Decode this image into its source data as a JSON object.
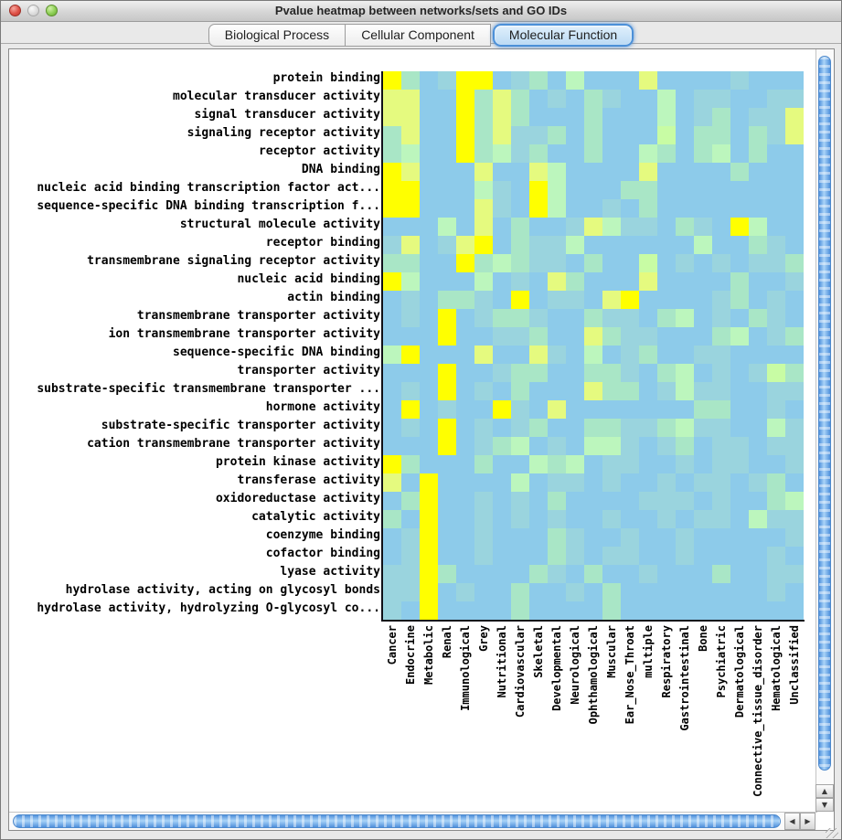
{
  "window": {
    "title": "Pvalue heatmap between networks/sets and GO IDs"
  },
  "tabs": [
    {
      "label": "Biological Process",
      "selected": false
    },
    {
      "label": "Cellular Component",
      "selected": false
    },
    {
      "label": "Molecular Function",
      "selected": true
    }
  ],
  "scrollbars": {
    "up_glyph": "▲",
    "down_glyph": "▼",
    "left_glyph": "◀",
    "right_glyph": "▶"
  },
  "heatmap": {
    "row_labels": [
      "protein binding",
      "molecular transducer activity",
      "signal transducer activity",
      "signaling receptor activity",
      "receptor activity",
      "DNA binding",
      "nucleic acid binding transcription factor act...",
      "sequence-specific DNA binding transcription f...",
      "structural molecule activity",
      "receptor binding",
      "transmembrane signaling receptor activity",
      "nucleic acid binding",
      "actin binding",
      "transmembrane transporter activity",
      "ion transmembrane transporter activity",
      "sequence-specific DNA binding",
      "transporter activity",
      "substrate-specific transmembrane transporter ...",
      "hormone activity",
      "substrate-specific transporter activity",
      "cation transmembrane transporter activity",
      "protein kinase activity",
      "transferase activity",
      "oxidoreductase activity",
      "catalytic activity",
      "coenzyme binding",
      "cofactor binding",
      "lyase activity",
      "hydrolase activity, acting on glycosyl bonds",
      "hydrolase activity, hydrolyzing O-glycosyl co..."
    ],
    "col_labels": [
      "Cancer",
      "Endocrine",
      "Metabolic",
      "Renal",
      "Immunological",
      "Grey",
      "Nutritional",
      "Cardiovascular",
      "Skeletal",
      "Developmental",
      "Neurological",
      "Ophthamological",
      "Muscular",
      "Ear_Nose_Throat",
      "multiple",
      "Respiratory",
      "Gastrointestinal",
      "Bone",
      "Psychiatric",
      "Dermatological",
      "Connective_tissue_disorder",
      "Hematological",
      "Unclassified"
    ],
    "palette": {
      "B": "#8DCBEA",
      "C": "#9AD4DE",
      "A": "#A9E6C6",
      "G": "#BCF6BD",
      "H": "#C8FCA4",
      "L": "#E5FA7F",
      "Y": "#FFFF00"
    },
    "cells": [
      "YABCYYBCABGBBBLBBBBCBBB",
      "LLBBYALABCBACBBGBCCBBCC",
      "LLBBYALABBBABBBGBCABCCL",
      "ALBBYALCCABABBBHBAABACL",
      "AGBBYAGCABBABBGABAGBABB",
      "YLBBBLBBLGBBBBLBBBBABBB",
      "YYBBBGCBYGBBBAABBBBBBBB",
      "YYBBBLCBYGBBCBABBBBBBBB",
      "BBBGBLBABBCLGCCBACBYGBB",
      "CLBCLYBACCGBBBBBBGBBACB",
      "AABBYAGACCBABBHBCBCBCCA",
      "YGBBBGBCBLABBBLBBBBABBC",
      "BCBAACBYBCCBLYBBBBCABCB",
      "BCBYBCAACBBACCBAGBCBACB",
      "BBBYBBCCABBLACCBBBAGBCA",
      "GYBBBLBBLCBGBCABBCCBBBB",
      "BBBYBBCAABBAACBAGBCBCHA",
      "BCBYBCBABBBLAABCGCCBBCC",
      "BYBCBBYCBLBBBBBBBAABBCB",
      "BCBYBCBCABBAACCAGCCBBGC",
      "BBBYBCAGBCBGGCBCABCCBCC",
      "YABBBABBGAGBCCBBCBCCBBC",
      "LBYBBBBGBCCBCBBCBCCBCAB",
      "BAYBBCBCBABBBBCCCBCBBAG",
      "ABYBBCBCBCBBCBBCBCCBGCC",
      "BCYBBCBBBACBBCBBCBBBBBC",
      "BCYBBCBBBACBCCBBCBBBBCB",
      "CCYABBBBACBABBCBBBABBCC",
      "CCYBCBBABBCBABBBBBBBBCB",
      "CBYBBBBABBBBABBBBBBBBBB"
    ]
  },
  "chart_data": {
    "type": "heatmap",
    "title": "Pvalue heatmap between networks/sets and GO IDs",
    "tab_shown": "Molecular Function",
    "rows": [
      "protein binding",
      "molecular transducer activity",
      "signal transducer activity",
      "signaling receptor activity",
      "receptor activity",
      "DNA binding",
      "nucleic acid binding transcription factor act...",
      "sequence-specific DNA binding transcription f...",
      "structural molecule activity",
      "receptor binding",
      "transmembrane signaling receptor activity",
      "nucleic acid binding",
      "actin binding",
      "transmembrane transporter activity",
      "ion transmembrane transporter activity",
      "sequence-specific DNA binding",
      "transporter activity",
      "substrate-specific transmembrane transporter ...",
      "hormone activity",
      "substrate-specific transporter activity",
      "cation transmembrane transporter activity",
      "protein kinase activity",
      "transferase activity",
      "oxidoreductase activity",
      "catalytic activity",
      "coenzyme binding",
      "cofactor binding",
      "lyase activity",
      "hydrolase activity, acting on glycosyl bonds",
      "hydrolase activity, hydrolyzing O-glycosyl co..."
    ],
    "columns": [
      "Cancer",
      "Endocrine",
      "Metabolic",
      "Renal",
      "Immunological",
      "Grey",
      "Nutritional",
      "Cardiovascular",
      "Skeletal",
      "Developmental",
      "Neurological",
      "Ophthamological",
      "Muscular",
      "Ear_Nose_Throat",
      "multiple",
      "Respiratory",
      "Gastrointestinal",
      "Bone",
      "Psychiatric",
      "Dermatological",
      "Connective_tissue_disorder",
      "Hematological",
      "Unclassified"
    ],
    "value_encoding": "categorical color code per cell; Y=strongest (yellow, lowest p-value), L, H, G, A, C decreasing significance, B=background (light blue, not significant)",
    "values": [
      "YABCYYBCABGBBBLBBBBCBBB",
      "LLBBYALABCBACBBGBCCBBCC",
      "LLBBYALABBBABBBGBCABCCL",
      "ALBBYALCCABABBBHBAABACL",
      "AGBBYAGCABBABBGABAGBABB",
      "YLBBBLBBLGBBBBLBBBBABBB",
      "YYBBBGCBYGBBBAABBBBBBBB",
      "YYBBBLCBYGBBCBABBBBBBBB",
      "BBBGBLBABBCLGCCBACBYGBB",
      "CLBCLYBACCGBBBBBBGBBACB",
      "AABBYAGACCBABBHBCBCBCCA",
      "YGBBBGBCBLABBBLBBBBABBC",
      "BCBAACBYBCCBLYBBBBCABCB",
      "BCBYBCAACBBACCBAGBCBACB",
      "BBBYBBCCABBLACCBBBAGBCA",
      "GYBBBLBBLCBGBCABBCCBBBB",
      "BBBYBBCAABBAACBAGBCBCHA",
      "BCBYBCBABBBLAABCGCCBBCC",
      "BYBCBBYCBLBBBBBBBAABBCB",
      "BCBYBCBCABBAACCAGCCBBGC",
      "BBBYBCAGBCBGGCBCABCCBCC",
      "YABBBABBGAGBCCBBCBCCBBC",
      "LBYBBBBGBCCBCBBCBCCBCAB",
      "BAYBBCBCBABBBBCCCBCBBAG",
      "ABYBBCBCBCBBCBBCBCCBGCC",
      "BCYBBCBBBACBBCBBCBBBBBC",
      "BCYBBCBBBACBCCBBCBBBBCB",
      "CCYABBBBACBABBCBBBABBCC",
      "CCYBCBBABBCBABBBBBBBBCB",
      "CBYBBBBABBBBABBBBBBBBBB"
    ]
  }
}
